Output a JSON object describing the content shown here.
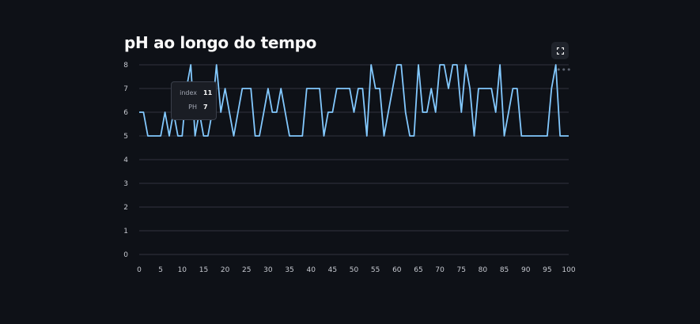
{
  "page": {
    "title": "pH ao longo do tempo"
  },
  "toolbar": {
    "fullscreen_icon": "fullscreen-icon",
    "more_icon": "more-options-icon"
  },
  "tooltip": {
    "rows": [
      {
        "key": "index",
        "value": "11"
      },
      {
        "key": "PH",
        "value": "7"
      }
    ]
  },
  "colors": {
    "background": "#0e1117",
    "line": "#83c9ff",
    "grid": "#31333f",
    "text": "#fafafa"
  },
  "chart_data": {
    "type": "line",
    "title": "pH ao longo do tempo",
    "xlabel": "",
    "ylabel": "",
    "xlim": [
      0,
      100
    ],
    "ylim": [
      0,
      8
    ],
    "x_ticks": [
      0,
      5,
      10,
      15,
      20,
      25,
      30,
      35,
      40,
      45,
      50,
      55,
      60,
      65,
      70,
      75,
      80,
      85,
      90,
      95,
      100
    ],
    "y_ticks": [
      0,
      1,
      2,
      3,
      4,
      5,
      6,
      7,
      8
    ],
    "grid": "horizontal",
    "series": [
      {
        "x": [
          0,
          1,
          2,
          3,
          4,
          5,
          6,
          7,
          8,
          9,
          10,
          11,
          12,
          13,
          14,
          15,
          16,
          17,
          18,
          19,
          20,
          21,
          22,
          23,
          24,
          25,
          26,
          27,
          28,
          29,
          30,
          31,
          32,
          33,
          34,
          35,
          36,
          37,
          38,
          39,
          40,
          41,
          42,
          43,
          44,
          45,
          46,
          47,
          48,
          49,
          50,
          51,
          52,
          53,
          54,
          55,
          56,
          57,
          58,
          59,
          60,
          61,
          62,
          63,
          64,
          65,
          66,
          67,
          68,
          69,
          70,
          71,
          72,
          73,
          74,
          75,
          76,
          77,
          78,
          79,
          80,
          81,
          82,
          83,
          84,
          85,
          86,
          87,
          88,
          89,
          90,
          91,
          92,
          93,
          94,
          95,
          96,
          97,
          98,
          99,
          100
        ],
        "values": [
          6,
          6,
          5,
          5,
          5,
          5,
          6,
          5,
          6,
          5,
          5,
          7,
          8,
          5,
          6,
          5,
          5,
          6,
          8,
          6,
          7,
          6,
          5,
          6,
          7,
          7,
          7,
          5,
          5,
          6,
          7,
          6,
          6,
          7,
          6,
          5,
          5,
          5,
          5,
          7,
          7,
          7,
          7,
          5,
          6,
          6,
          7,
          7,
          7,
          7,
          6,
          7,
          7,
          5,
          8,
          7,
          7,
          5,
          6,
          7,
          8,
          8,
          6,
          5,
          5,
          8,
          6,
          6,
          7,
          6,
          8,
          8,
          7,
          8,
          8,
          6,
          8,
          7,
          5,
          7,
          7,
          7,
          7,
          6,
          8,
          5,
          6,
          7,
          7,
          5,
          5,
          5,
          5,
          5,
          5,
          5,
          7,
          8,
          5,
          5,
          5
        ]
      }
    ]
  }
}
